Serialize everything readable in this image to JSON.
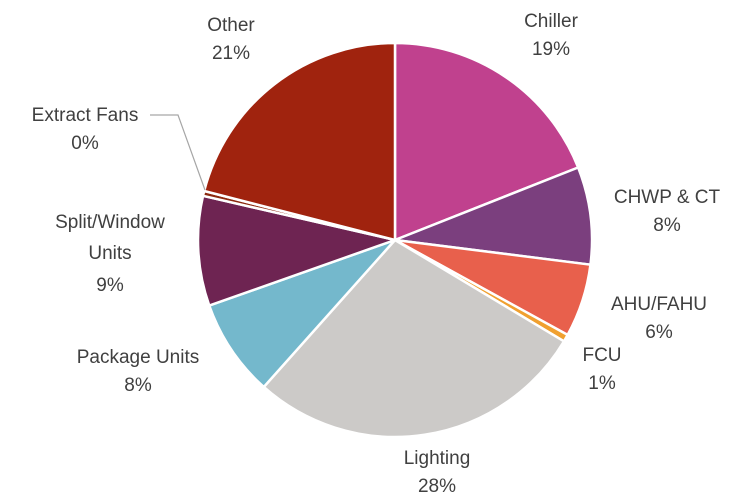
{
  "chart_data": {
    "type": "pie",
    "title": "",
    "legend": "none",
    "slices": [
      {
        "name": "Chiller",
        "value": 19,
        "label": "19%",
        "color": "#c0418e"
      },
      {
        "name": "CHWP & CT",
        "value": 8,
        "label": "8%",
        "color": "#7b3f7e"
      },
      {
        "name": "AHU/FAHU",
        "value": 6,
        "label": "6%",
        "color": "#e8604c"
      },
      {
        "name": "FCU",
        "value": 0.6,
        "label": "1%",
        "color": "#f0a030"
      },
      {
        "name": "Lighting",
        "value": 28,
        "label": "28%",
        "color": "#cccac8"
      },
      {
        "name": "Package Units",
        "value": 8,
        "label": "8%",
        "color": "#74b8cc"
      },
      {
        "name": "Split/Window Units",
        "value": 9,
        "label": "9%",
        "color": "#6e2452"
      },
      {
        "name": "Extract Fans",
        "value": 0.4,
        "label": "0%",
        "color": "#8c2a10"
      },
      {
        "name": "Other",
        "value": 21,
        "label": "21%",
        "color": "#a0230e"
      }
    ]
  }
}
